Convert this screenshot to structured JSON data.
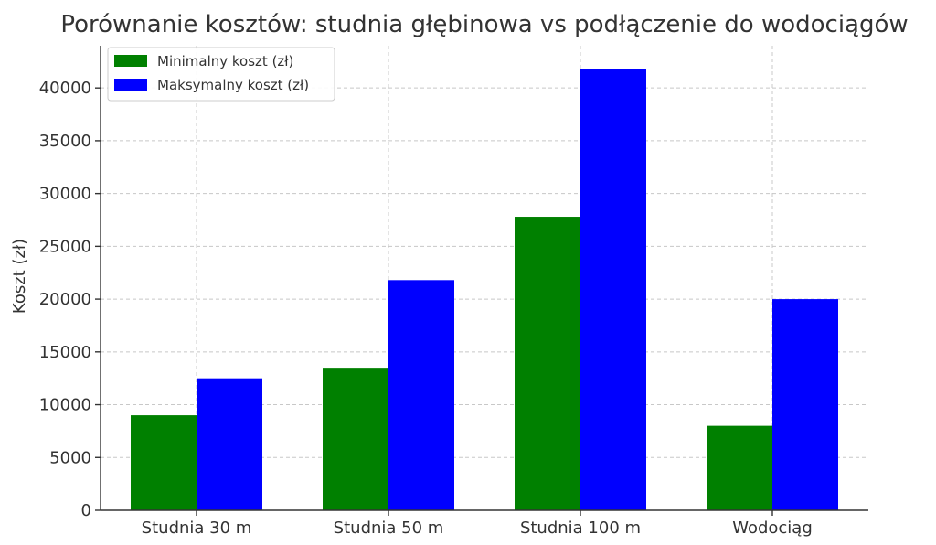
{
  "chart_data": {
    "type": "bar",
    "title": "Porównanie kosztów: studnia głębinowa vs podłączenie do wodociągów",
    "xlabel": "",
    "ylabel": "Koszt (zł)",
    "categories": [
      "Studnia 30 m",
      "Studnia 50 m",
      "Studnia 100 m",
      "Wodociąg"
    ],
    "series": [
      {
        "name": "Minimalny koszt (zł)",
        "color": "#008000",
        "values": [
          9000,
          13500,
          27800,
          8000
        ]
      },
      {
        "name": "Maksymalny koszt (zł)",
        "color": "#0000ff",
        "values": [
          12500,
          21800,
          41800,
          20000
        ]
      }
    ],
    "ylim": [
      0,
      44000
    ],
    "yticks": [
      0,
      5000,
      10000,
      15000,
      20000,
      25000,
      30000,
      35000,
      40000
    ],
    "grid": true,
    "legend_position": "top-left"
  }
}
